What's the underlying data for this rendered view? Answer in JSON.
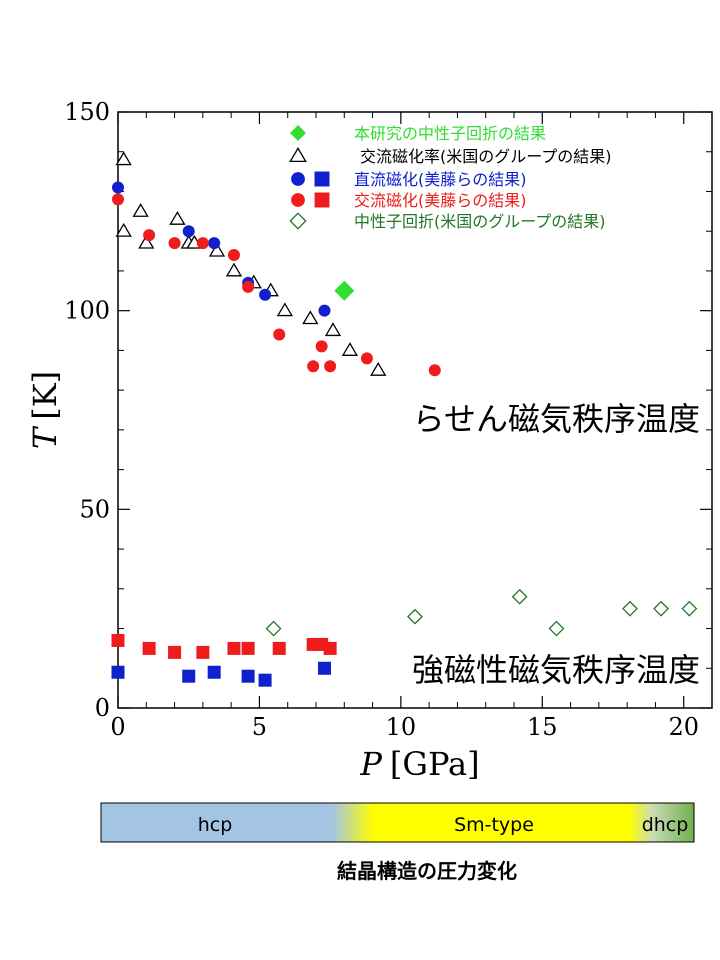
{
  "chart_data": {
    "type": "scatter",
    "xlabel_var": "P",
    "xlabel_unit": "[GPa]",
    "ylabel_var": "T",
    "ylabel_unit": "[K]",
    "xlim": [
      0,
      21
    ],
    "ylim": [
      0,
      150
    ],
    "x_ticks": [
      "0",
      "5",
      "10",
      "15",
      "20"
    ],
    "y_ticks": [
      "0",
      "50",
      "100",
      "150"
    ],
    "grid": false,
    "legend_position": "top-right",
    "annotations": {
      "helical": "らせん磁気秩序温度",
      "ferro": "強磁性磁気秩序温度"
    },
    "series": [
      {
        "name": "本研究の中性子回折の結果",
        "marker": "diamond-filled",
        "color": "#33dd33",
        "points": [
          [
            8.0,
            105
          ]
        ]
      },
      {
        "name": "交流磁化率(米国のグループの結果)",
        "marker": "triangle-open",
        "color": "#000000",
        "points": [
          [
            0.2,
            138
          ],
          [
            0.2,
            120
          ],
          [
            0.8,
            125
          ],
          [
            1.0,
            117
          ],
          [
            2.1,
            123
          ],
          [
            2.5,
            117
          ],
          [
            2.7,
            117
          ],
          [
            3.5,
            115
          ],
          [
            4.1,
            110
          ],
          [
            4.8,
            107
          ],
          [
            5.4,
            105
          ],
          [
            5.9,
            100
          ],
          [
            6.8,
            98
          ],
          [
            7.6,
            95
          ],
          [
            8.2,
            90
          ],
          [
            9.2,
            85
          ]
        ]
      },
      {
        "name": "直流磁化(美藤らの結果)",
        "marker": "circle-filled",
        "color": "#1020cc",
        "points": [
          [
            0.0,
            131
          ],
          [
            2.5,
            120
          ],
          [
            3.4,
            117
          ],
          [
            4.6,
            107
          ],
          [
            5.2,
            104
          ],
          [
            7.3,
            100
          ]
        ]
      },
      {
        "name": "直流磁化(美藤らの結果)",
        "marker": "square-filled",
        "color": "#1020cc",
        "points": [
          [
            0.0,
            9
          ],
          [
            2.5,
            8
          ],
          [
            3.4,
            9
          ],
          [
            4.6,
            8
          ],
          [
            5.2,
            7
          ],
          [
            7.3,
            10
          ]
        ]
      },
      {
        "name": "交流磁化(美藤らの結果)",
        "marker": "circle-filled",
        "color": "#ee1c1c",
        "points": [
          [
            0.0,
            128
          ],
          [
            1.1,
            119
          ],
          [
            2.0,
            117
          ],
          [
            3.0,
            117
          ],
          [
            4.1,
            114
          ],
          [
            4.6,
            106
          ],
          [
            5.7,
            94
          ],
          [
            6.9,
            86
          ],
          [
            7.2,
            91
          ],
          [
            7.5,
            86
          ],
          [
            8.8,
            88
          ],
          [
            11.2,
            85
          ]
        ]
      },
      {
        "name": "交流磁化(美藤らの結果)",
        "marker": "square-filled",
        "color": "#ee1c1c",
        "points": [
          [
            0.0,
            17
          ],
          [
            1.1,
            15
          ],
          [
            2.0,
            14
          ],
          [
            3.0,
            14
          ],
          [
            4.1,
            15
          ],
          [
            4.6,
            15
          ],
          [
            5.7,
            15
          ],
          [
            6.9,
            16
          ],
          [
            7.2,
            16
          ],
          [
            7.5,
            15
          ]
        ]
      },
      {
        "name": "中性子回折(米国のグループの結果)",
        "marker": "diamond-open",
        "color": "#227722",
        "points": [
          [
            5.5,
            20
          ],
          [
            10.5,
            23
          ],
          [
            14.2,
            28
          ],
          [
            15.5,
            20
          ],
          [
            18.1,
            25
          ],
          [
            19.2,
            25
          ],
          [
            20.2,
            25
          ]
        ]
      }
    ],
    "legend": [
      {
        "markers": [
          "diamond-filled"
        ],
        "color": "#33dd33",
        "label": "本研究の中性子回折の結果"
      },
      {
        "markers": [
          "triangle-open"
        ],
        "color": "#000000",
        "label": "交流磁化率(米国のグループの結果)"
      },
      {
        "markers": [
          "circle-filled",
          "square-filled"
        ],
        "color": "#1020cc",
        "label": "直流磁化(美藤らの結果)"
      },
      {
        "markers": [
          "circle-filled",
          "square-filled"
        ],
        "color": "#ee1c1c",
        "label": "交流磁化(美藤らの結果)"
      },
      {
        "markers": [
          "diamond-open"
        ],
        "color": "#227722",
        "label": "中性子回折(米国のグループの結果)"
      }
    ]
  },
  "structure_bar": {
    "caption": "結晶構造の圧力変化",
    "segments": [
      {
        "label": "hcp",
        "color": "#a4c4e4"
      },
      {
        "label": "Sm-type",
        "color": "#ffff00"
      },
      {
        "label": "dhcp",
        "color": "#70b050"
      }
    ]
  }
}
